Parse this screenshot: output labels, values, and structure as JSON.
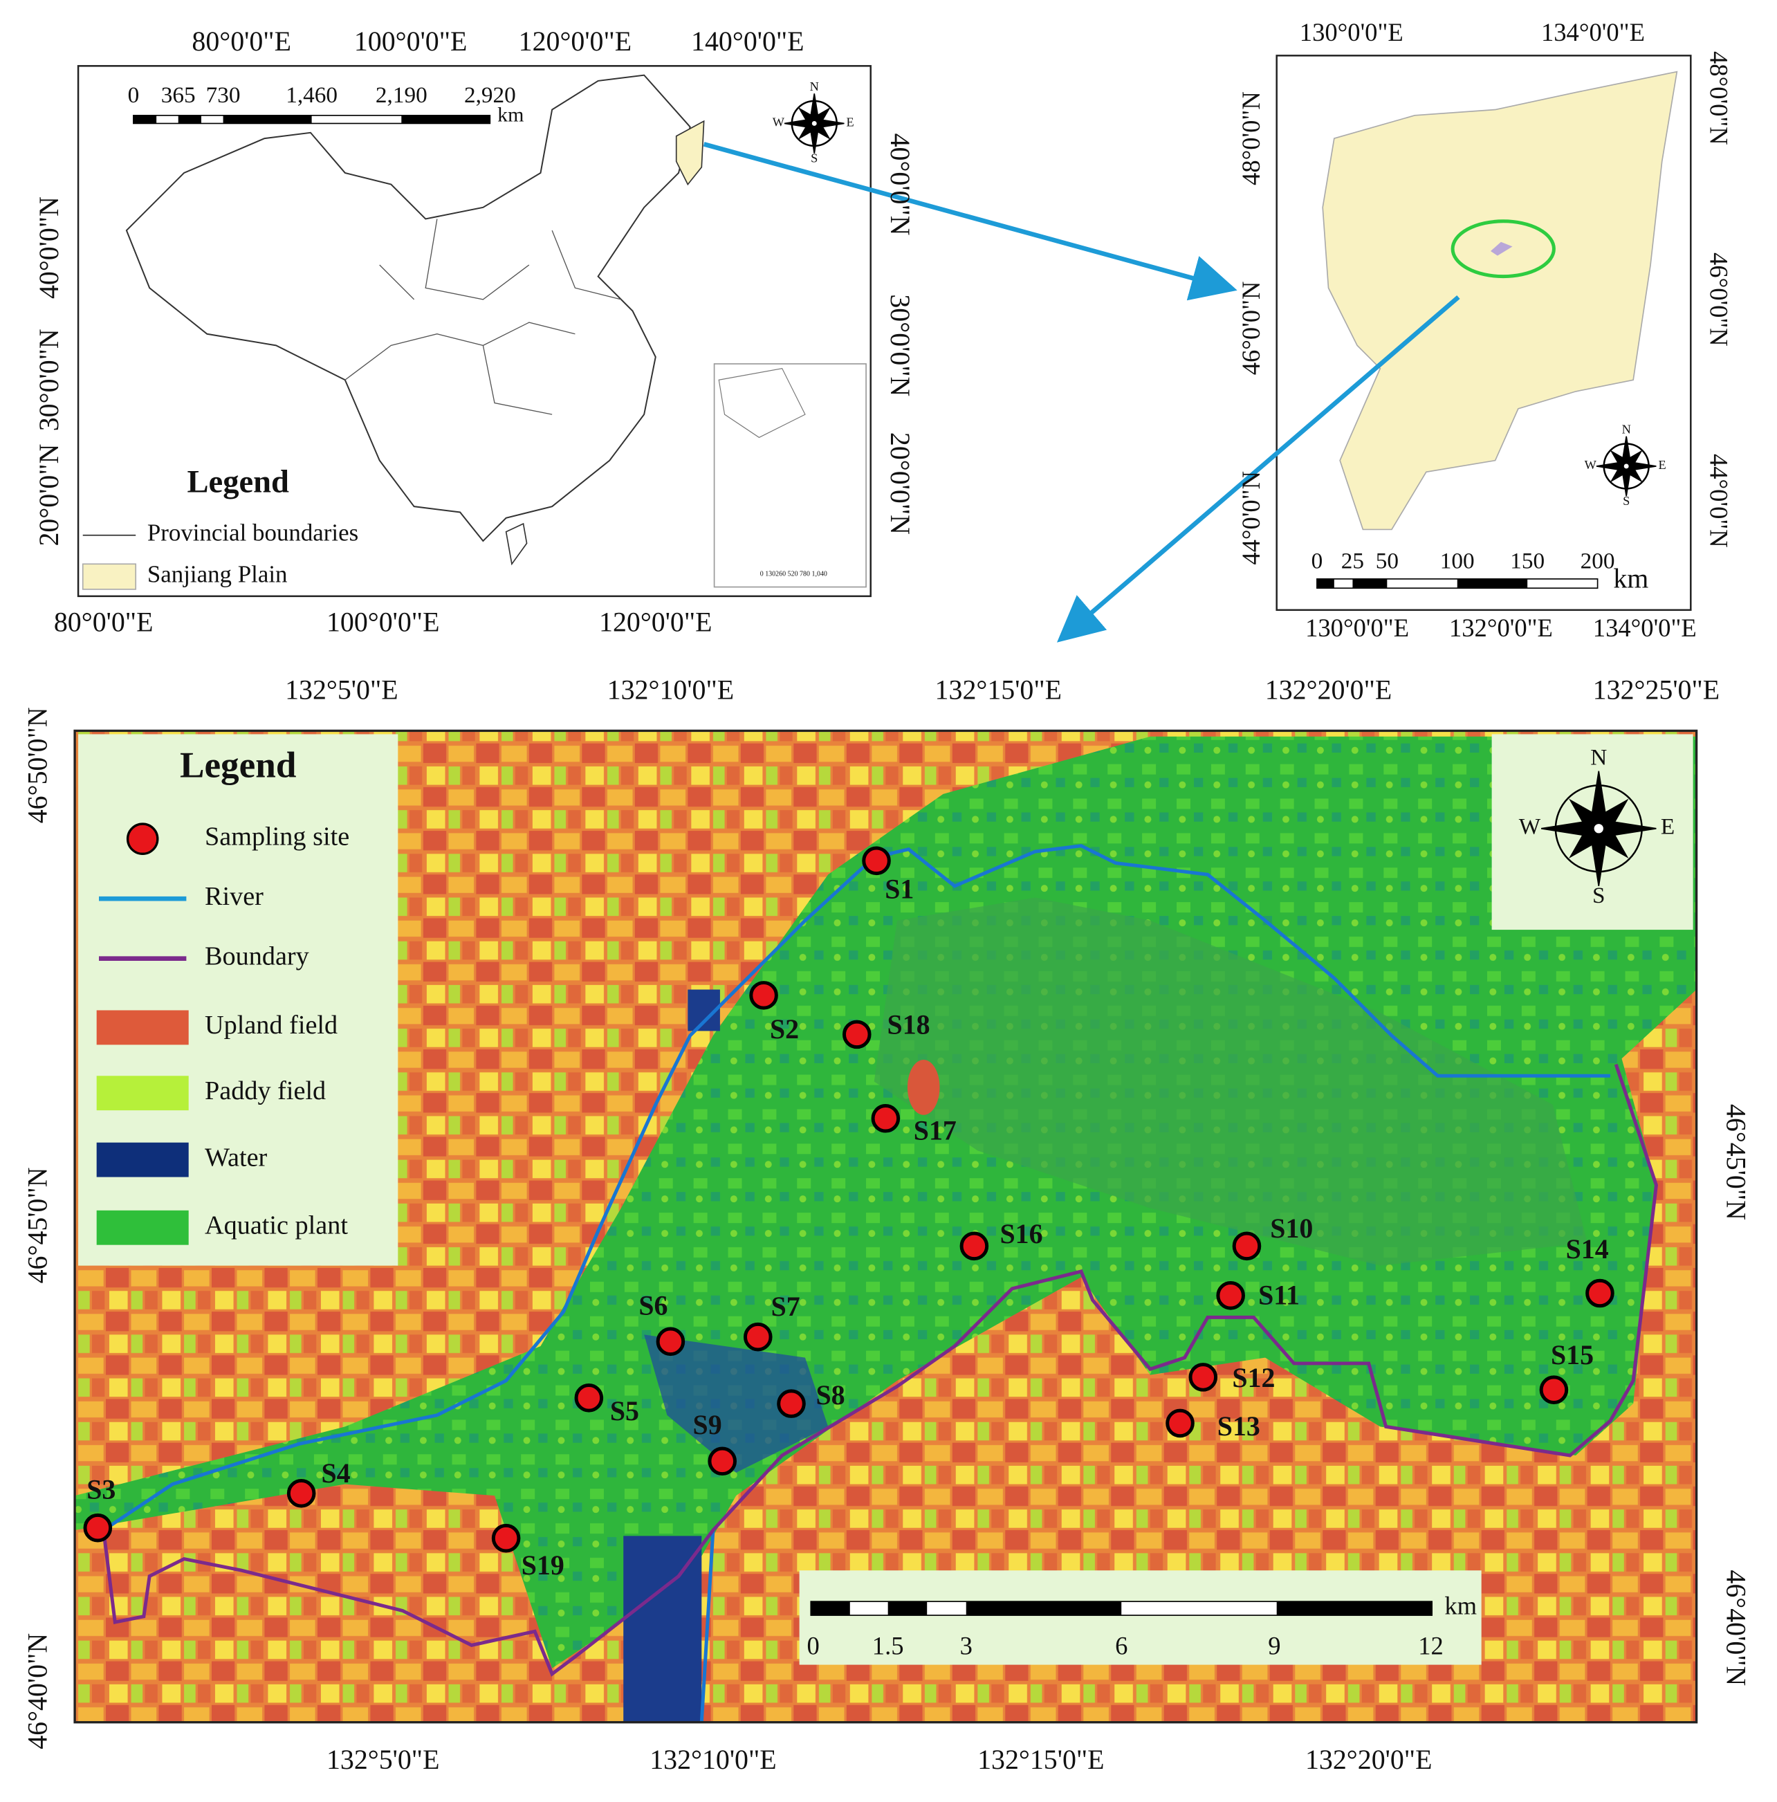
{
  "china_map": {
    "top_labels": [
      "80°0'0\"E",
      "100°0'0\"E",
      "120°0'0\"E",
      "140°0'0\"E"
    ],
    "bottom_labels": [
      "80°0'0\"E",
      "100°0'0\"E",
      "120°0'0\"E"
    ],
    "left_labels": [
      "40°0'0\"N",
      "30°0'0\"N",
      "20°0'0\"N"
    ],
    "right_labels": [
      "40°0'0\"N",
      "30°0'0\"N",
      "20°0'0\"N"
    ],
    "scale_labels": [
      "0",
      "365",
      "730",
      "1,460",
      "2,190",
      "2,920"
    ],
    "scale_unit": "km",
    "compass": [
      "N",
      "S",
      "W",
      "E"
    ],
    "legend": {
      "title": "Legend",
      "items": [
        "Provincial boundaries",
        "Sanjiang Plain"
      ]
    },
    "inset_scale": "0 130260 520 780 1,040"
  },
  "plain_map": {
    "top_labels": [
      "130°0'0\"E",
      "134°0'0\"E"
    ],
    "bottom_labels": [
      "130°0'0\"E",
      "132°0'0\"E",
      "134°0'0\"E"
    ],
    "left_labels": [
      "48°0'0\"N",
      "46°0'0\"N",
      "44°0'0\"N"
    ],
    "right_labels": [
      "48°0'0\"N",
      "46°0'0\"N",
      "44°0'0\"N"
    ],
    "scale_labels": [
      "0",
      "25",
      "50",
      "100",
      "150",
      "200"
    ],
    "scale_unit": "km",
    "compass": [
      "N",
      "S",
      "W",
      "E"
    ]
  },
  "main_map": {
    "top_labels": [
      "132°5'0\"E",
      "132°10'0\"E",
      "132°15'0\"E",
      "132°20'0\"E",
      "132°25'0\"E"
    ],
    "bottom_labels": [
      "132°5'0\"E",
      "132°10'0\"E",
      "132°15'0\"E",
      "132°20'0\"E"
    ],
    "left_labels": [
      "46°50'0\"N",
      "46°45'0\"N",
      "46°40'0\"N"
    ],
    "right_labels": [
      "46°45'0\"N",
      "46°40'0\"N"
    ],
    "legend": {
      "title": "Legend",
      "items": [
        "Sampling site",
        "River",
        "Boundary",
        "Upland field",
        "Paddy field",
        "Water",
        "Aquatic plant"
      ]
    },
    "compass": [
      "N",
      "S",
      "W",
      "E"
    ],
    "scale_labels": [
      "0",
      "1.5",
      "3",
      "6",
      "9",
      "12"
    ],
    "scale_unit": "km",
    "sites": [
      "S1",
      "S2",
      "S3",
      "S4",
      "S5",
      "S6",
      "S7",
      "S8",
      "S9",
      "S10",
      "S11",
      "S12",
      "S13",
      "S14",
      "S15",
      "S16",
      "S17",
      "S18",
      "S19"
    ]
  }
}
